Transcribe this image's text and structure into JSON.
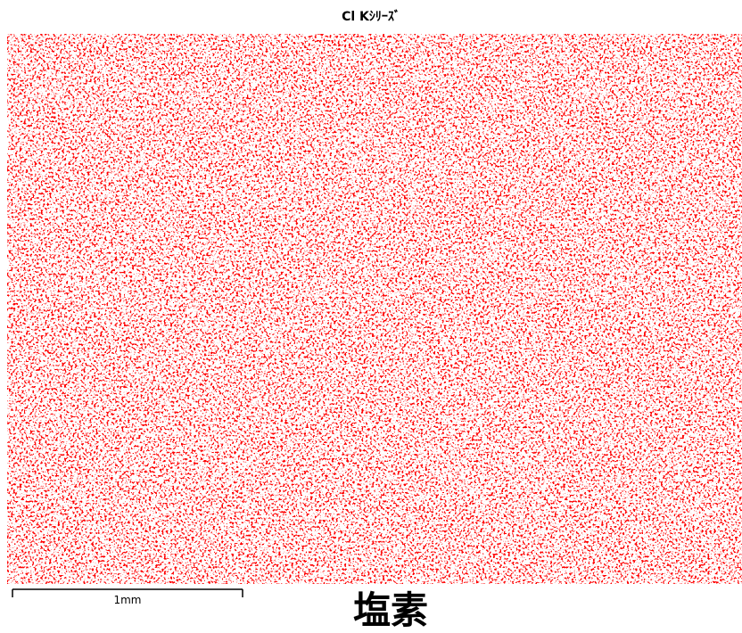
{
  "title": "Cl Kｼﾘｰｽﾞ",
  "scale_bar": {
    "label": "1mm"
  },
  "caption": "塩素"
}
